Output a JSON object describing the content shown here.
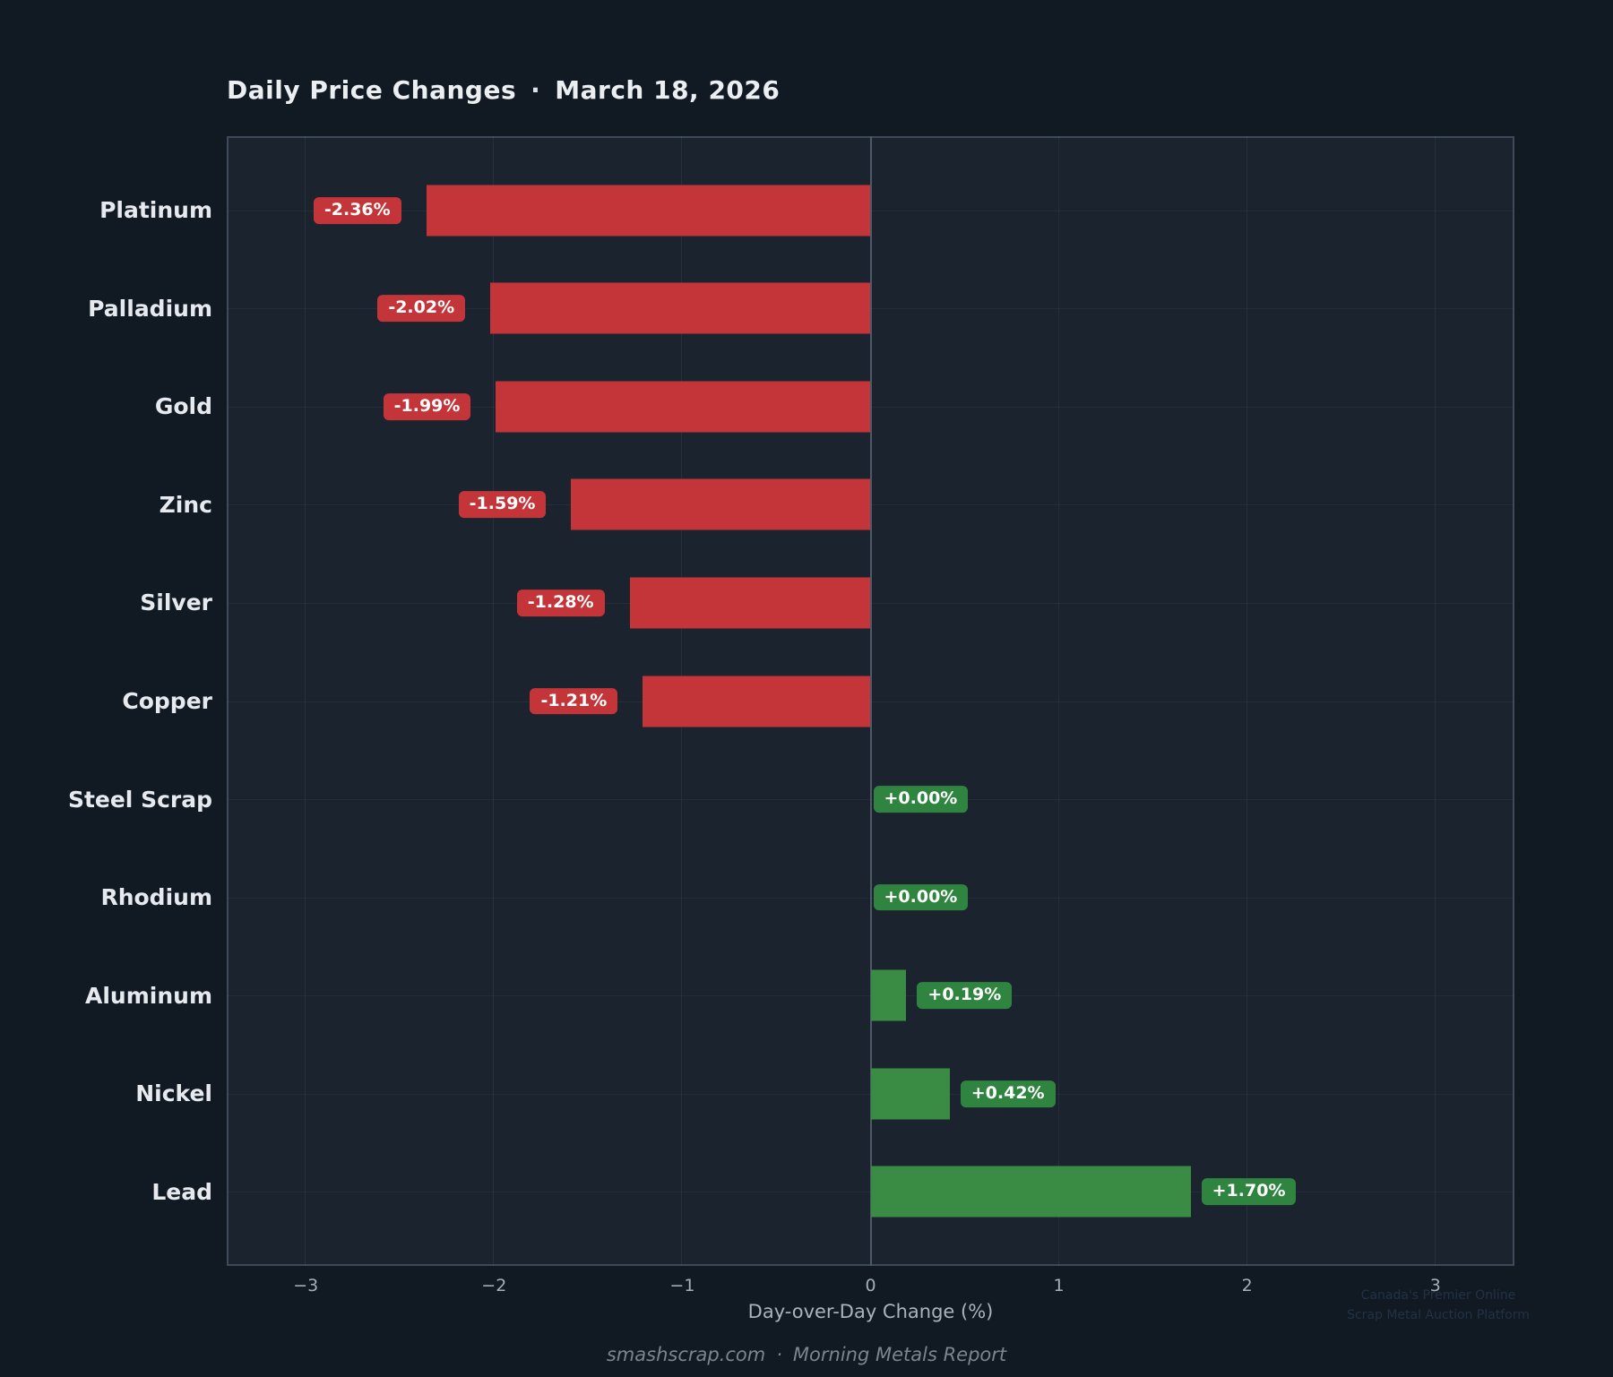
{
  "header": {
    "title": "Daily Price Changes",
    "separator": "·",
    "date": "March 18, 2026"
  },
  "chart_data": {
    "type": "bar",
    "orientation": "horizontal",
    "title": "Daily Price Changes · March 18, 2026",
    "categories": [
      "Platinum",
      "Palladium",
      "Gold",
      "Zinc",
      "Silver",
      "Copper",
      "Steel Scrap",
      "Rhodium",
      "Aluminum",
      "Nickel",
      "Lead"
    ],
    "values": [
      -2.36,
      -2.02,
      -1.99,
      -1.59,
      -1.28,
      -1.21,
      0.0,
      0.0,
      0.19,
      0.42,
      1.7
    ],
    "value_labels": [
      "-2.36%",
      "-2.02%",
      "-1.99%",
      "-1.59%",
      "-1.28%",
      "-1.21%",
      "+0.00%",
      "+0.00%",
      "+0.19%",
      "+0.42%",
      "+1.70%"
    ],
    "xlabel": "Day-over-Day Change (%)",
    "xlim": [
      -3.42,
      3.42
    ],
    "xticks": [
      -3,
      -2,
      -1,
      0,
      1,
      2,
      3
    ],
    "xtick_labels": [
      "−3",
      "−2",
      "−1",
      "0",
      "1",
      "2",
      "3"
    ],
    "grid": true,
    "legend": false,
    "colors": {
      "negative_bar": "#c43539",
      "positive_bar": "#3a8c44",
      "negative_badge": "#c43539",
      "positive_badge": "#2f8540",
      "zero_line": "#4d5967",
      "grid_line": "rgba(140,160,185,0.10)",
      "grid_line_h": "rgba(140,160,185,0.07)",
      "plot_bg": "#1b242e",
      "page_bg": "#111923",
      "plot_border": "#3e4a59"
    }
  },
  "watermark": {
    "line1": "Canada's Premier Online",
    "line2": "Scrap Metal Auction Platform"
  },
  "footer": {
    "site": "smashscrap.com",
    "separator": "·",
    "report": "Morning Metals Report"
  }
}
